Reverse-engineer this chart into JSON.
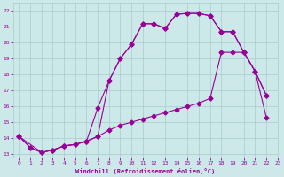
{
  "xlabel": "Windchill (Refroidissement éolien,°C)",
  "bg_color": "#cce8e8",
  "grid_color": "#aacccc",
  "line_color": "#990099",
  "xlim": [
    -0.5,
    23
  ],
  "ylim": [
    12.8,
    22.5
  ],
  "xticks": [
    0,
    1,
    2,
    3,
    4,
    5,
    6,
    7,
    8,
    9,
    10,
    11,
    12,
    13,
    14,
    15,
    16,
    17,
    18,
    19,
    20,
    21,
    22,
    23
  ],
  "yticks": [
    13,
    14,
    15,
    16,
    17,
    18,
    19,
    20,
    21,
    22
  ],
  "line1_x": [
    0,
    1,
    2,
    3,
    4,
    5,
    6,
    7,
    8,
    9,
    10,
    11,
    12,
    13,
    14,
    15,
    16,
    17,
    18,
    19,
    20,
    21,
    22
  ],
  "line1_y": [
    14.1,
    13.4,
    13.1,
    13.25,
    13.5,
    13.6,
    13.8,
    14.1,
    17.6,
    19.0,
    19.9,
    21.2,
    21.2,
    20.9,
    21.8,
    21.85,
    21.85,
    21.7,
    20.7,
    20.7,
    19.4,
    18.2,
    16.7
  ],
  "line2_x": [
    0,
    1,
    2,
    3,
    4,
    5,
    6,
    7,
    8,
    9,
    10,
    11,
    12,
    13,
    14,
    15,
    16,
    17,
    18,
    19,
    20,
    21,
    22
  ],
  "line2_y": [
    14.1,
    13.4,
    13.1,
    13.25,
    13.5,
    13.6,
    13.8,
    15.9,
    17.6,
    19.0,
    19.9,
    21.2,
    21.2,
    20.9,
    21.8,
    21.85,
    21.85,
    21.7,
    20.7,
    20.7,
    19.4,
    18.2,
    16.7
  ],
  "line3_x": [
    0,
    2,
    3,
    4,
    5,
    6,
    7,
    8,
    9,
    10,
    11,
    12,
    13,
    14,
    15,
    16,
    17,
    18,
    19,
    20,
    21,
    22
  ],
  "line3_y": [
    14.1,
    13.1,
    13.25,
    13.5,
    13.6,
    13.8,
    14.1,
    14.5,
    14.8,
    15.0,
    15.2,
    15.4,
    15.6,
    15.8,
    16.0,
    16.2,
    16.5,
    19.4,
    19.4,
    19.4,
    18.2,
    15.3
  ]
}
